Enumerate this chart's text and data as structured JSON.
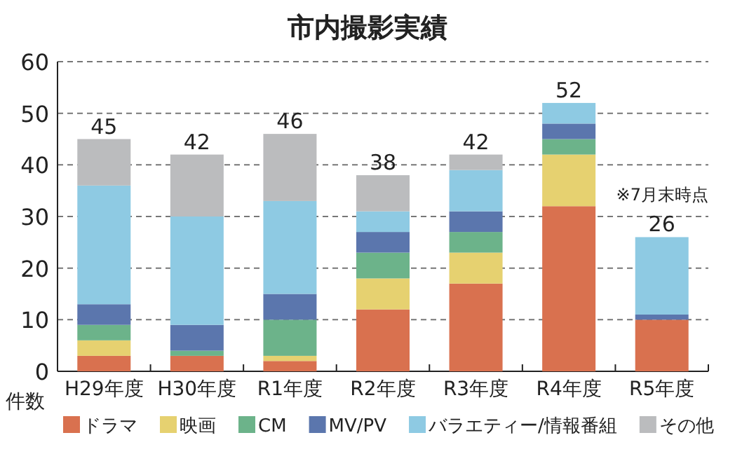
{
  "chart_data": {
    "type": "bar",
    "title": "市内撮影実績",
    "ylabel": "件数",
    "stacked": true,
    "categories": [
      "H29年度",
      "H30年度",
      "R1年度",
      "R2年度",
      "R3年度",
      "R4年度",
      "R5年度"
    ],
    "series": [
      {
        "name": "ドラマ",
        "color": "#d9714f",
        "values": [
          3,
          3,
          2,
          12,
          17,
          32,
          10
        ]
      },
      {
        "name": "映画",
        "color": "#e6d170",
        "values": [
          3,
          0,
          1,
          6,
          6,
          10,
          0
        ]
      },
      {
        "name": "CM",
        "color": "#6cb38a",
        "values": [
          3,
          1,
          7,
          5,
          4,
          3,
          0
        ]
      },
      {
        "name": "MV/PV",
        "color": "#5b76ad",
        "values": [
          4,
          5,
          5,
          4,
          4,
          3,
          1
        ]
      },
      {
        "name": "バラエティー/情報番組",
        "color": "#8ecae3",
        "values": [
          23,
          21,
          18,
          4,
          8,
          4,
          15
        ]
      },
      {
        "name": "その他",
        "color": "#bbbcbe",
        "values": [
          9,
          12,
          13,
          7,
          3,
          0,
          0
        ]
      }
    ],
    "totals": [
      "45",
      "42",
      "46",
      "38",
      "42",
      "52",
      "26"
    ],
    "annotations": [
      "※7月末時点"
    ],
    "ylim": [
      0,
      60
    ],
    "yticks": [
      0,
      10,
      20,
      30,
      40,
      50,
      60
    ],
    "grid": "y",
    "legend": "bottom"
  }
}
